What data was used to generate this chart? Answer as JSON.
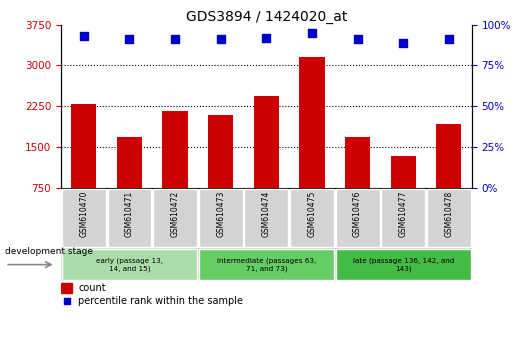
{
  "title": "GDS3894 / 1424020_at",
  "samples": [
    "GSM610470",
    "GSM610471",
    "GSM610472",
    "GSM610473",
    "GSM610474",
    "GSM610475",
    "GSM610476",
    "GSM610477",
    "GSM610478"
  ],
  "counts": [
    2290,
    1680,
    2170,
    2080,
    2430,
    3150,
    1690,
    1340,
    1920
  ],
  "percentile_ranks": [
    93,
    91,
    91,
    91,
    92,
    95,
    91,
    89,
    91
  ],
  "ylim_left": [
    750,
    3750
  ],
  "ylim_right": [
    0,
    100
  ],
  "yticks_left": [
    750,
    1500,
    2250,
    3000,
    3750
  ],
  "yticks_right": [
    0,
    25,
    50,
    75,
    100
  ],
  "grid_values": [
    1500,
    2250,
    3000
  ],
  "bar_color": "#cc0000",
  "dot_color": "#0000cc",
  "bar_bottom": 750,
  "stage_groups": [
    {
      "label": "early (passage 13,\n14, and 15)",
      "start": 0,
      "end": 3,
      "color": "#aaddaa"
    },
    {
      "label": "intermediate (passages 63,\n71, and 73)",
      "start": 3,
      "end": 6,
      "color": "#66cc66"
    },
    {
      "label": "late (passage 136, 142, and\n143)",
      "start": 6,
      "end": 9,
      "color": "#44bb44"
    }
  ],
  "xlabel_stage": "development stage",
  "legend_count": "count",
  "legend_percentile": "percentile rank within the sample",
  "tick_label_color_left": "#cc0000",
  "tick_label_color_right": "#0000cc",
  "cell_color": "#d3d3d3"
}
